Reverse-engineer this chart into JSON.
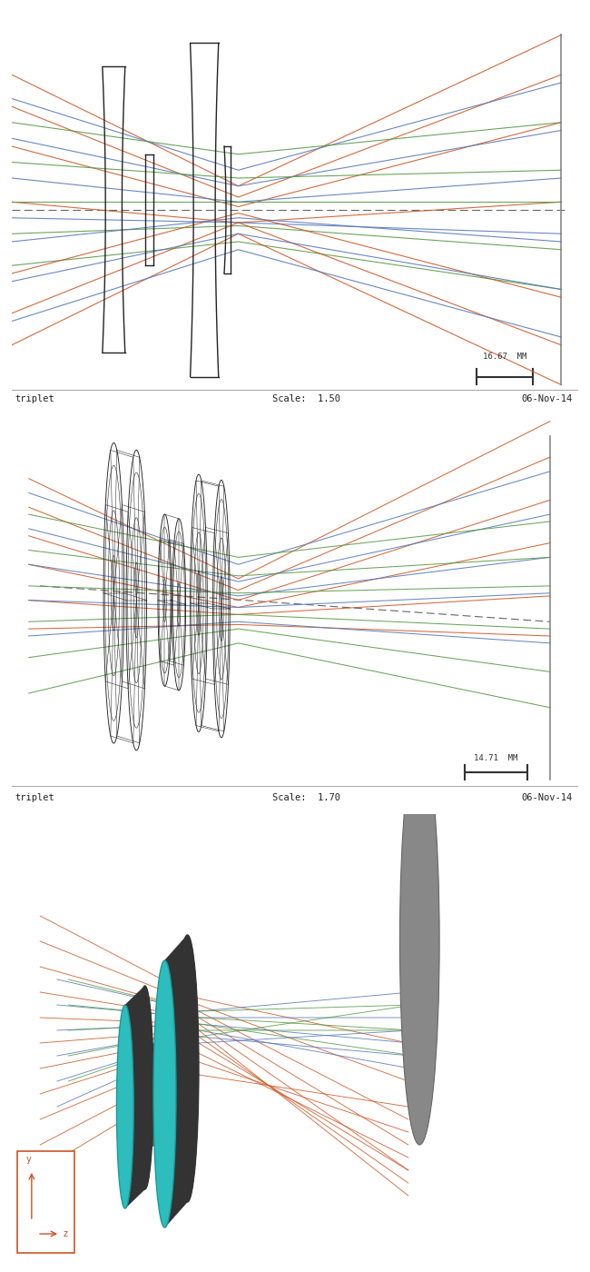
{
  "background_color": "#ffffff",
  "panel1": {
    "label": "triplet",
    "scale_text": "Scale:  1.50",
    "date_text": "06-Nov-14",
    "scale_bar_value": "16.67  MM",
    "lens_color": "#222222",
    "axis_color": "#555555",
    "focal_plane_color": "#888888",
    "ray_orange": "#cc5522",
    "ray_blue": "#5577bb",
    "ray_green": "#559944"
  },
  "panel2": {
    "label": "triplet",
    "scale_text": "Scale:  1.70",
    "date_text": "06-Nov-14",
    "scale_bar_value": "14.71  MM",
    "wire_color": "#222222",
    "axis_color": "#555555",
    "ray_orange": "#cc5522",
    "ray_blue": "#5577bb",
    "ray_green": "#559944"
  },
  "panel3": {
    "teal": "#2dbdbd",
    "dark_rim": "#333333",
    "gray_disc": "#888888",
    "ray_orange": "#cc5522",
    "ray_blue": "#5577bb",
    "ray_green": "#559944",
    "axis_box_color": "#cc5522"
  }
}
